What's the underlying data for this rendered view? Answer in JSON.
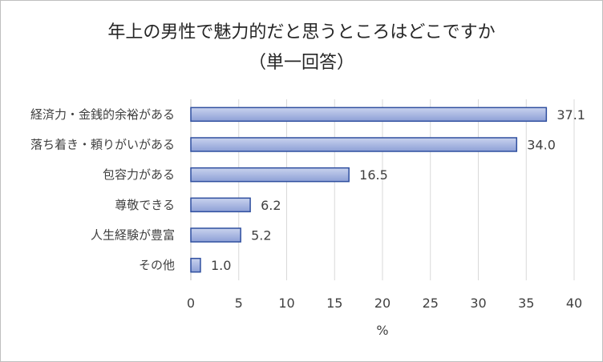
{
  "chart_data": {
    "type": "bar",
    "orientation": "horizontal",
    "title": "年上の男性で魅力的だと思うところはどこですか",
    "subtitle": "（単一回答）",
    "categories": [
      "経済力・金銭的余裕がある",
      "落ち着き・頼りがいがある",
      "包容力がある",
      "尊敬できる",
      "人生経験が豊富",
      "その他"
    ],
    "values": [
      37.1,
      34.0,
      16.5,
      6.2,
      5.2,
      1.0
    ],
    "value_labels": [
      "37.1",
      "34.0",
      "16.5",
      "6.2",
      "5.2",
      "1.0"
    ],
    "xlabel": "%",
    "xlim": [
      0,
      40
    ],
    "xticks": [
      "0",
      "5",
      "10",
      "15",
      "20",
      "25",
      "30",
      "35",
      "40"
    ],
    "grid": true,
    "colors": {
      "bar_fill_top": "#c9d3ee",
      "bar_fill_bottom": "#8d9fd6",
      "bar_stroke": "#2f4f9f",
      "grid": "#d9d9d9",
      "text": "#404040"
    }
  }
}
